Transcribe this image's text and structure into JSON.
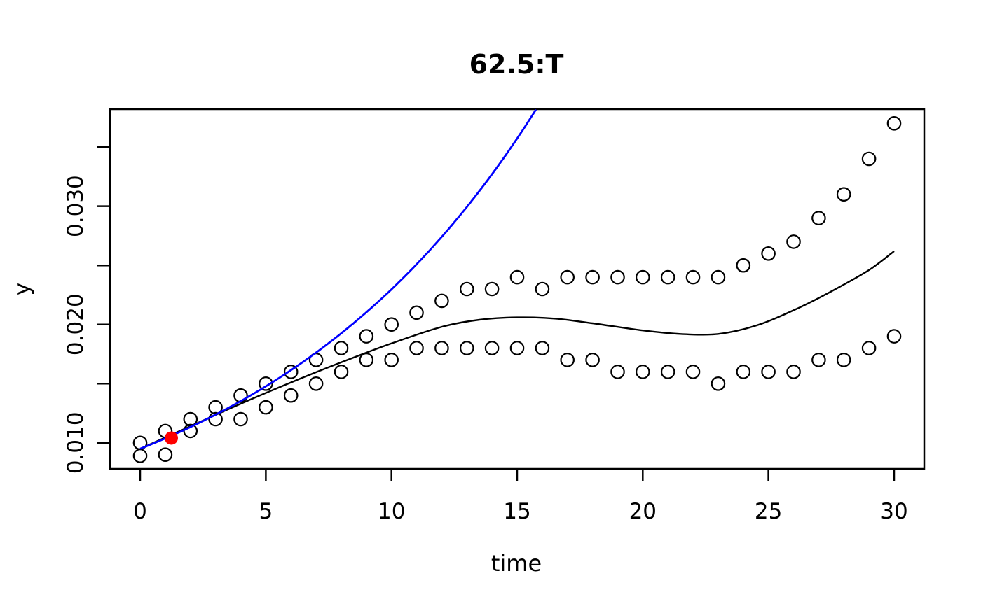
{
  "chart_data": {
    "type": "scatter",
    "title": "62.5:T",
    "xlabel": "time",
    "ylabel": "y",
    "xlim": [
      -1.2,
      31.2
    ],
    "ylim": [
      0.0078,
      0.0382
    ],
    "grid": false,
    "legend": "none",
    "axis_color": "#000000",
    "x_ticks": {
      "values": [
        0,
        5,
        10,
        15,
        20,
        25,
        30
      ],
      "labels": [
        "0",
        "5",
        "10",
        "15",
        "20",
        "25",
        "30"
      ]
    },
    "y_ticks": {
      "values": [
        0.01,
        0.015,
        0.02,
        0.025,
        0.03,
        0.035
      ],
      "labels": [
        "0.010",
        "",
        "0.020",
        "",
        "0.030",
        ""
      ]
    },
    "series": [
      {
        "name": "upper-band-points",
        "type": "scatter",
        "marker": "open-circle",
        "color": "#000000",
        "x": [
          0,
          1,
          2,
          3,
          4,
          5,
          6,
          7,
          8,
          9,
          10,
          11,
          12,
          13,
          14,
          15,
          16,
          17,
          18,
          19,
          20,
          21,
          22,
          23,
          24,
          25,
          26,
          27,
          28,
          29,
          30
        ],
        "y": [
          0.01,
          0.011,
          0.012,
          0.013,
          0.014,
          0.015,
          0.016,
          0.017,
          0.018,
          0.019,
          0.02,
          0.021,
          0.022,
          0.023,
          0.023,
          0.024,
          0.023,
          0.024,
          0.024,
          0.024,
          0.024,
          0.024,
          0.024,
          0.024,
          0.025,
          0.026,
          0.027,
          0.029,
          0.031,
          0.034,
          0.037
        ]
      },
      {
        "name": "lower-band-points",
        "type": "scatter",
        "marker": "open-circle",
        "color": "#000000",
        "x": [
          0,
          1,
          2,
          3,
          4,
          5,
          6,
          7,
          8,
          9,
          10,
          11,
          12,
          13,
          14,
          15,
          16,
          17,
          18,
          19,
          20,
          21,
          22,
          23,
          24,
          25,
          26,
          27,
          28,
          29,
          30
        ],
        "y": [
          0.0089,
          0.009,
          0.011,
          0.012,
          0.012,
          0.013,
          0.014,
          0.015,
          0.016,
          0.017,
          0.017,
          0.018,
          0.018,
          0.018,
          0.018,
          0.018,
          0.018,
          0.017,
          0.017,
          0.016,
          0.016,
          0.016,
          0.016,
          0.015,
          0.016,
          0.016,
          0.016,
          0.017,
          0.017,
          0.018,
          0.019
        ]
      },
      {
        "name": "fitted-smooth-curve",
        "type": "line",
        "color": "#000000",
        "points": [
          [
            0,
            0.0095
          ],
          [
            2,
            0.0114
          ],
          [
            4,
            0.0133
          ],
          [
            6,
            0.0151
          ],
          [
            8,
            0.0168
          ],
          [
            10,
            0.0184
          ],
          [
            12,
            0.0198
          ],
          [
            13.5,
            0.0204
          ],
          [
            15,
            0.0206
          ],
          [
            16.5,
            0.0205
          ],
          [
            18,
            0.0201
          ],
          [
            20,
            0.0195
          ],
          [
            21.5,
            0.0192
          ],
          [
            23,
            0.0192
          ],
          [
            24.5,
            0.0199
          ],
          [
            26,
            0.0212
          ],
          [
            27.5,
            0.0228
          ],
          [
            29,
            0.0246
          ],
          [
            30,
            0.0262
          ]
        ]
      },
      {
        "name": "model-exponential-curve",
        "type": "line",
        "color": "#0000ff",
        "model": "exponential",
        "y0": 0.0095,
        "rate": 0.0883,
        "t_range": [
          0,
          15.78
        ]
      },
      {
        "name": "highlight-point",
        "type": "scatter",
        "marker": "filled-circle",
        "color": "#ff0000",
        "x": [
          1.24
        ],
        "y": [
          0.0104
        ]
      }
    ]
  }
}
